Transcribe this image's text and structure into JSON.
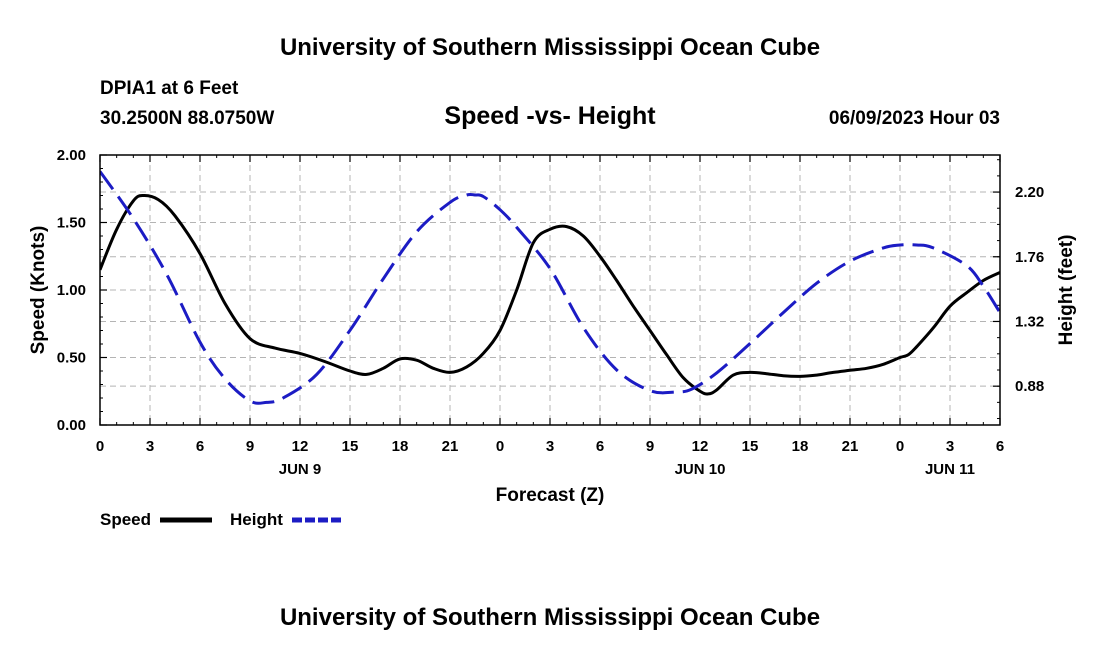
{
  "header": {
    "title": "University of Southern Mississippi Ocean Cube",
    "station": "DPIA1 at 6 Feet",
    "coords": "30.2500N  88.0750W",
    "subtitle": "Speed -vs- Height",
    "date": "06/09/2023 Hour 03"
  },
  "footer": {
    "title": "University of Southern Mississippi Ocean Cube"
  },
  "colors": {
    "speed": "#000000",
    "height": "#1c1cc4",
    "grid": "#b4b4b4"
  },
  "chart_data": {
    "type": "line",
    "title": "Speed -vs- Height",
    "xlabel": "Forecast (Z)",
    "ylabel": "Speed (Knots)",
    "y2label": "Height (feet)",
    "x_unit": "hours since 2023-06-09 00Z",
    "xlim": [
      0,
      54
    ],
    "ylim": [
      0,
      2
    ],
    "y2lim": [
      0.616,
      2.452
    ],
    "grid": true,
    "x_ticks": [
      0,
      3,
      6,
      9,
      12,
      15,
      18,
      21,
      24,
      27,
      30,
      33,
      36,
      39,
      42,
      45,
      48,
      51,
      54
    ],
    "x_tick_labels": [
      "0",
      "3",
      "6",
      "9",
      "12",
      "15",
      "18",
      "21",
      "0",
      "3",
      "6",
      "9",
      "12",
      "15",
      "18",
      "21",
      "0",
      "3",
      "6"
    ],
    "day_labels": [
      {
        "x": 12,
        "label": "JUN 9"
      },
      {
        "x": 36,
        "label": "JUN 10"
      },
      {
        "x": 51,
        "label": "JUN 11"
      }
    ],
    "y_ticks": [
      0,
      0.5,
      1,
      1.5,
      2
    ],
    "y_tick_labels": [
      "0.00",
      "0.50",
      "1.00",
      "1.50",
      "2.00"
    ],
    "y2_ticks": [
      0.88,
      1.32,
      1.76,
      2.2
    ],
    "y2_tick_labels": [
      "0.88",
      "1.32",
      "1.76",
      "2.20"
    ],
    "legend": {
      "position": "bottom-left",
      "speed_label": "Speed",
      "height_label": "Height"
    },
    "series": [
      {
        "name": "Speed",
        "axis": "left",
        "style": "solid",
        "x": [
          0,
          1,
          2,
          2.6,
          3.5,
          4.5,
          6,
          7.5,
          9,
          10.5,
          12,
          13.5,
          15,
          16,
          17,
          18,
          19,
          20,
          21,
          22,
          23,
          24,
          25,
          26,
          27,
          28,
          29,
          30,
          31,
          32,
          33,
          34,
          35,
          36,
          36.5,
          37,
          38,
          39,
          40,
          41,
          42,
          43,
          44,
          45,
          46,
          47,
          48,
          48.5,
          49,
          50,
          51,
          52,
          53,
          54
        ],
        "y": [
          1.15,
          1.45,
          1.66,
          1.7,
          1.67,
          1.55,
          1.27,
          0.9,
          0.64,
          0.57,
          0.53,
          0.47,
          0.4,
          0.375,
          0.42,
          0.49,
          0.48,
          0.42,
          0.39,
          0.43,
          0.53,
          0.7,
          1.0,
          1.35,
          1.45,
          1.47,
          1.4,
          1.25,
          1.07,
          0.88,
          0.7,
          0.52,
          0.35,
          0.25,
          0.23,
          0.26,
          0.37,
          0.39,
          0.38,
          0.365,
          0.36,
          0.37,
          0.39,
          0.405,
          0.42,
          0.45,
          0.5,
          0.52,
          0.58,
          0.72,
          0.88,
          0.98,
          1.07,
          1.13
        ]
      },
      {
        "name": "Height",
        "axis": "right",
        "style": "dashed",
        "x": [
          0,
          2,
          4,
          6,
          7.5,
          9,
          10,
          11,
          13,
          15,
          17,
          19,
          21,
          22,
          22.5,
          23,
          24,
          25,
          27,
          29,
          31,
          33,
          34.5,
          35.5,
          37,
          39,
          41,
          43,
          45,
          47,
          48,
          49,
          50,
          52,
          53,
          54
        ],
        "y": [
          2.34,
          2.02,
          1.64,
          1.18,
          0.93,
          0.78,
          0.77,
          0.8,
          0.96,
          1.26,
          1.61,
          1.93,
          2.13,
          2.18,
          2.18,
          2.17,
          2.08,
          1.96,
          1.68,
          1.28,
          0.99,
          0.85,
          0.84,
          0.86,
          0.97,
          1.17,
          1.38,
          1.58,
          1.73,
          1.82,
          1.84,
          1.84,
          1.82,
          1.7,
          1.56,
          1.38
        ]
      }
    ]
  }
}
